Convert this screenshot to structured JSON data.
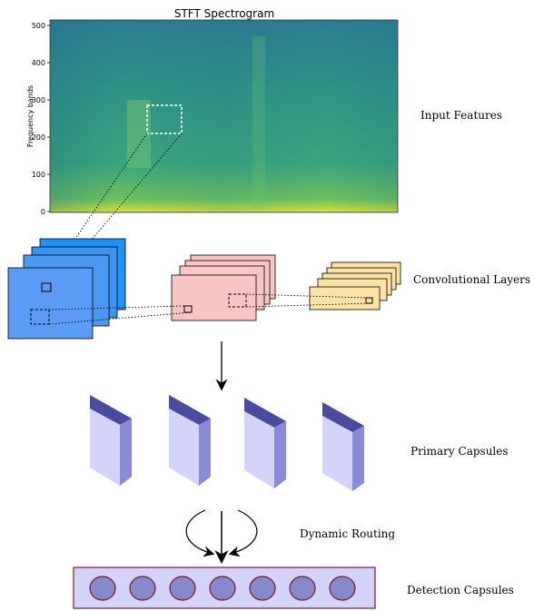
{
  "spectrogram": {
    "title": "STFT Spectrogram",
    "ylabel": "Frequency bands",
    "yticks": [
      "500",
      "400",
      "300",
      "200",
      "100",
      "0"
    ]
  },
  "stages": {
    "input": "Input Features",
    "conv": "Convolutional Layers",
    "primary": "Primary Capsules",
    "routing": "Dynamic Routing",
    "detection": "Detection Capsules"
  },
  "colors": {
    "spec_low": "#2a8c8a",
    "spec_mid": "#3fa37a",
    "spec_high": "#c8dd3a",
    "conv1_front": "#5a9cf5",
    "conv1_back": "#1e90ff",
    "conv2": "#f8c4c4",
    "conv3": "#fde2a6",
    "capsule_front": "#d4d4fa",
    "capsule_side": "#8a8ad6",
    "capsule_top": "#4a4aa0",
    "detection_bg": "#d4d4fa",
    "detection_border": "#7a1a2a",
    "detection_circle": "#8888cc"
  },
  "counts": {
    "primary_capsules": 4,
    "detection_capsules": 7
  }
}
